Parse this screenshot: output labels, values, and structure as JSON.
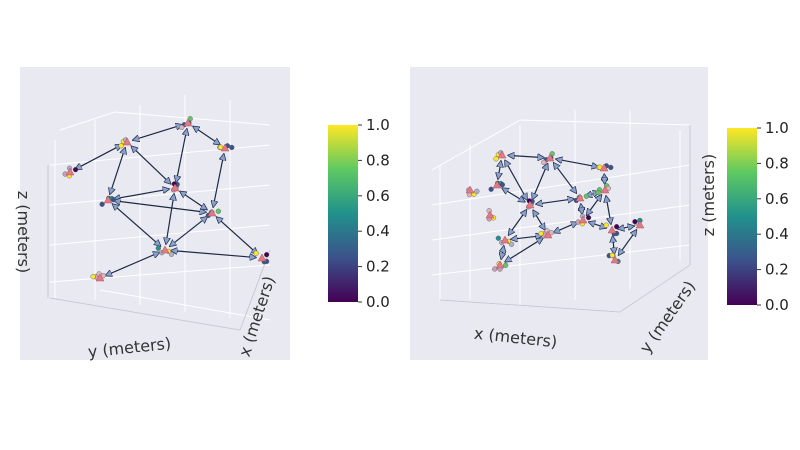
{
  "chart_data": [
    {
      "type": "scatter-network-3d",
      "xlabel": "x (meters)",
      "ylabel": "y (meters)",
      "zlabel": "z (meters)",
      "grid": true,
      "colorbar": {
        "colormap": "viridis",
        "range": [
          0.0,
          1.0
        ],
        "ticks": [
          "0.0",
          "0.2",
          "0.4",
          "0.6",
          "0.8",
          "1.0"
        ]
      }
    },
    {
      "type": "scatter-network-3d",
      "xlabel": "x (meters)",
      "ylabel": "y (meters)",
      "zlabel": "z (meters)",
      "grid": true,
      "colorbar": {
        "colormap": "viridis",
        "range": [
          0.0,
          1.0
        ],
        "ticks": [
          "0.0",
          "0.2",
          "0.4",
          "0.6",
          "0.8",
          "1.0"
        ]
      }
    }
  ],
  "colors": {
    "pane_background": "#e9e9f2",
    "grid": "#ffffff",
    "arrow": "#1e2a44",
    "anchor_marker": "#e17a84",
    "viridis": [
      "#440154",
      "#3b528b",
      "#21918c",
      "#5ec962",
      "#fde725"
    ]
  }
}
